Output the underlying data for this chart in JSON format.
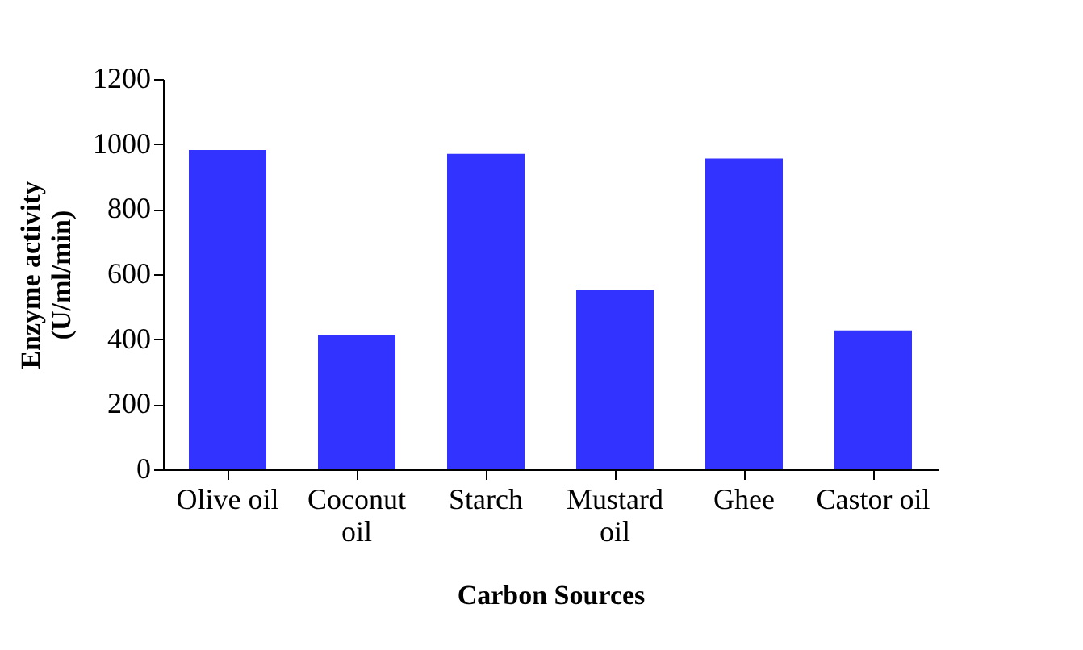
{
  "chart_data": {
    "type": "bar",
    "xlabel": "Carbon Sources",
    "ylabel": "Enzyme activity (U/ml/min)",
    "categories": [
      "Olive oil",
      "Coconut oil",
      "Starch",
      "Mustard oil",
      "Ghee",
      "Castor oil"
    ],
    "values": [
      982,
      413,
      970,
      553,
      956,
      427
    ],
    "color": "#3333ff",
    "ylim": [
      0,
      1200
    ],
    "yticks": [
      0,
      200,
      400,
      600,
      800,
      1000,
      1200
    ],
    "grid": false
  }
}
